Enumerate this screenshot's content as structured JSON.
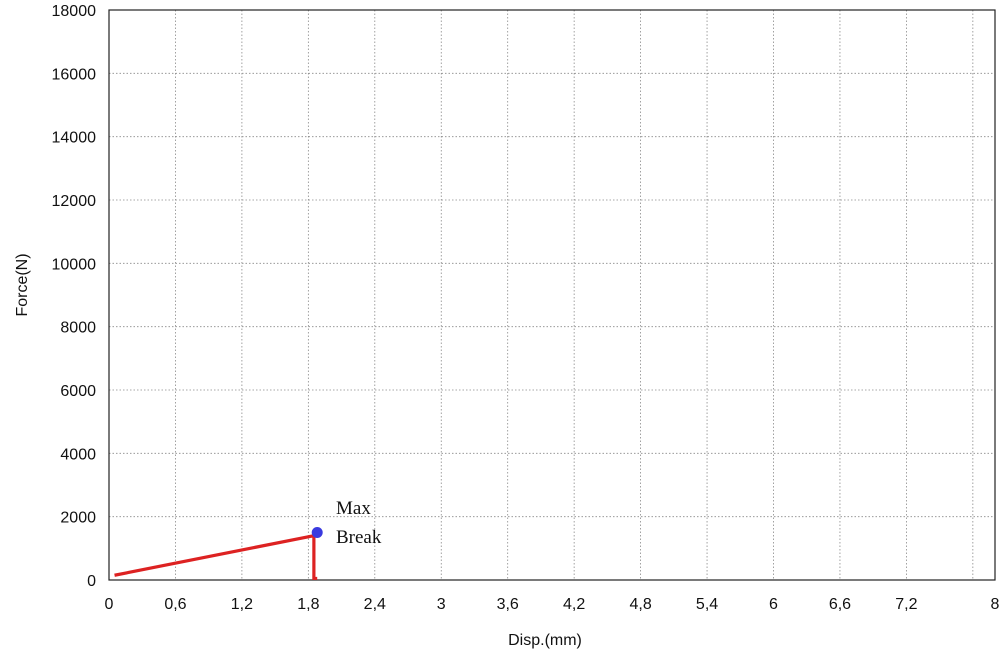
{
  "chart_data": {
    "type": "line",
    "xlabel": "Disp.(mm)",
    "ylabel": "Force(N)",
    "xlim": [
      0,
      8
    ],
    "ylim": [
      0,
      18000
    ],
    "x_ticks": [
      "0",
      "0,6",
      "1,2",
      "1,8",
      "2,4",
      "3",
      "3,6",
      "4,2",
      "4,8",
      "5,4",
      "6",
      "6,6",
      "7,2",
      "8"
    ],
    "x_tick_values": [
      0,
      0.6,
      1.2,
      1.8,
      2.4,
      3,
      3.6,
      4.2,
      4.8,
      5.4,
      6,
      6.6,
      7.2,
      8
    ],
    "y_ticks": [
      "0",
      "2000",
      "4000",
      "6000",
      "8000",
      "10000",
      "12000",
      "14000",
      "16000",
      "18000"
    ],
    "y_tick_values": [
      0,
      2000,
      4000,
      6000,
      8000,
      10000,
      12000,
      14000,
      16000,
      18000
    ],
    "grid": true,
    "series": [
      {
        "color": "#dd2222",
        "x": [
          0.05,
          1.85,
          1.85,
          1.88
        ],
        "y": [
          150,
          1400,
          50,
          50
        ]
      }
    ],
    "points": [
      {
        "x": 1.88,
        "y": 1500,
        "color": "#3a3adf"
      }
    ],
    "annotations": [
      "Max",
      "Break"
    ]
  }
}
